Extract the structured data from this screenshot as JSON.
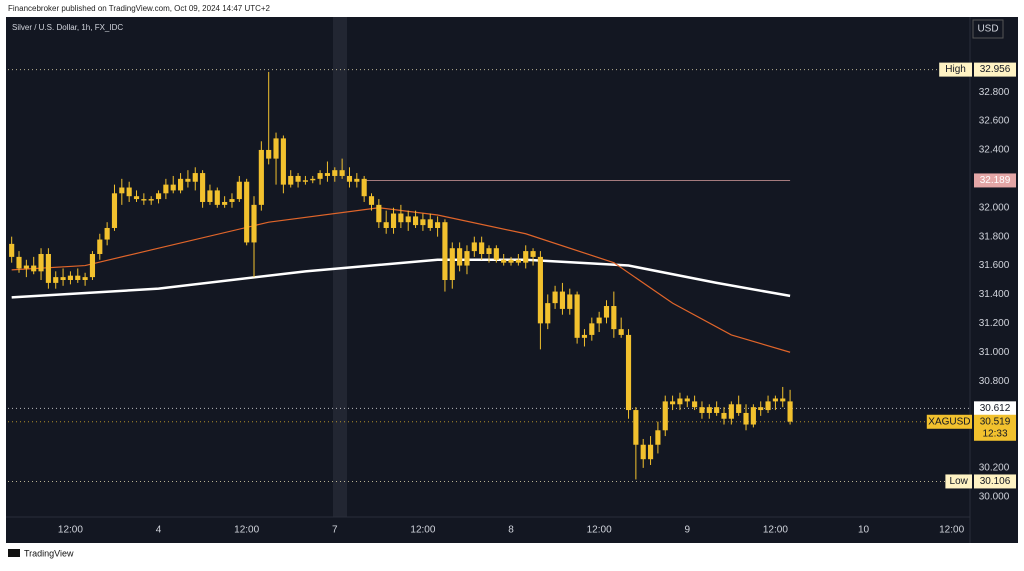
{
  "header": {
    "text": "Financebroker published on TradingView.com, Oct 09, 2024 14:47 UTC+2"
  },
  "footer": {
    "brand": "TradingView"
  },
  "chart_data": {
    "type": "candlestick",
    "title": "Silver / U.S. Dollar, 1h, FX_IDC",
    "currency": "USD",
    "color": "#f2c12e",
    "xlim": [
      -0.5,
      130.5
    ],
    "xticks": [
      {
        "value": 8,
        "label": "12:00"
      },
      {
        "value": 20,
        "label": "4"
      },
      {
        "value": 32,
        "label": "12:00"
      },
      {
        "value": 44,
        "label": "7"
      },
      {
        "value": 56,
        "label": "12:00"
      },
      {
        "value": 68,
        "label": "8"
      },
      {
        "value": 80,
        "label": "12:00"
      },
      {
        "value": 92,
        "label": "9"
      },
      {
        "value": 104,
        "label": "12:00"
      },
      {
        "value": 116,
        "label": "10"
      },
      {
        "value": 128,
        "label": "12:00"
      }
    ],
    "ylim": [
      29.86,
      33.32
    ],
    "yticks": [
      {
        "value": 30,
        "label": "30.000"
      },
      {
        "value": 30.2,
        "label": "30.200"
      },
      {
        "value": 30.8,
        "label": "30.800"
      },
      {
        "value": 31,
        "label": "31.000"
      },
      {
        "value": 31.2,
        "label": "31.200"
      },
      {
        "value": 31.4,
        "label": "31.400"
      },
      {
        "value": 31.6,
        "label": "31.600"
      },
      {
        "value": 31.8,
        "label": "31.800"
      },
      {
        "value": 32,
        "label": "32.000"
      },
      {
        "value": 32.4,
        "label": "32.400"
      },
      {
        "value": 32.6,
        "label": "32.600"
      },
      {
        "value": 32.8,
        "label": "32.800"
      }
    ],
    "ohlc": [
      [
        31.75,
        31.8,
        31.62,
        31.66
      ],
      [
        31.66,
        31.7,
        31.55,
        31.58
      ],
      [
        31.58,
        31.64,
        31.52,
        31.6
      ],
      [
        31.6,
        31.66,
        31.54,
        31.56
      ],
      [
        31.56,
        31.72,
        31.5,
        31.68
      ],
      [
        31.68,
        31.72,
        31.44,
        31.48
      ],
      [
        31.48,
        31.56,
        31.44,
        31.52
      ],
      [
        31.52,
        31.58,
        31.46,
        31.5
      ],
      [
        31.5,
        31.56,
        31.47,
        31.53
      ],
      [
        31.53,
        31.58,
        31.48,
        31.5
      ],
      [
        31.5,
        31.55,
        31.46,
        31.52
      ],
      [
        31.52,
        31.7,
        31.5,
        31.68
      ],
      [
        31.68,
        31.82,
        31.64,
        31.78
      ],
      [
        31.78,
        31.9,
        31.74,
        31.86
      ],
      [
        31.86,
        32.16,
        31.84,
        32.1
      ],
      [
        32.1,
        32.2,
        32.02,
        32.14
      ],
      [
        32.14,
        32.18,
        32.04,
        32.08
      ],
      [
        32.08,
        32.12,
        32.04,
        32.06
      ],
      [
        32.06,
        32.1,
        32.02,
        32.05
      ],
      [
        32.05,
        32.08,
        32.02,
        32.06
      ],
      [
        32.06,
        32.12,
        32.03,
        32.1
      ],
      [
        32.1,
        32.2,
        32.06,
        32.16
      ],
      [
        32.16,
        32.22,
        32.1,
        32.12
      ],
      [
        32.12,
        32.24,
        32.1,
        32.2
      ],
      [
        32.2,
        32.26,
        32.14,
        32.18
      ],
      [
        32.18,
        32.28,
        32.12,
        32.24
      ],
      [
        32.24,
        32.26,
        32.0,
        32.04
      ],
      [
        32.04,
        32.16,
        32.02,
        32.12
      ],
      [
        32.12,
        32.14,
        32.0,
        32.02
      ],
      [
        32.02,
        32.08,
        32.0,
        32.04
      ],
      [
        32.04,
        32.1,
        32.0,
        32.06
      ],
      [
        32.06,
        32.22,
        32.04,
        32.18
      ],
      [
        32.18,
        32.2,
        31.74,
        31.76
      ],
      [
        31.76,
        32.08,
        31.52,
        32.02
      ],
      [
        32.02,
        32.46,
        31.98,
        32.4
      ],
      [
        32.4,
        32.94,
        32.3,
        32.34
      ],
      [
        32.34,
        32.52,
        32.16,
        32.48
      ],
      [
        32.48,
        32.5,
        32.1,
        32.16
      ],
      [
        32.16,
        32.26,
        32.14,
        32.22
      ],
      [
        32.22,
        32.24,
        32.14,
        32.18
      ],
      [
        32.18,
        32.22,
        32.16,
        32.19
      ],
      [
        32.19,
        32.22,
        32.17,
        32.2
      ],
      [
        32.2,
        32.26,
        32.16,
        32.24
      ],
      [
        32.24,
        32.32,
        32.18,
        32.22
      ],
      [
        32.22,
        32.28,
        32.18,
        32.26
      ],
      [
        32.26,
        32.34,
        32.2,
        32.22
      ],
      [
        32.22,
        32.28,
        32.14,
        32.18
      ],
      [
        32.18,
        32.24,
        32.14,
        32.2
      ],
      [
        32.2,
        32.22,
        32.04,
        32.08
      ],
      [
        32.08,
        32.1,
        31.98,
        32.02
      ],
      [
        32.02,
        32.06,
        31.86,
        31.9
      ],
      [
        31.9,
        31.98,
        31.82,
        31.86
      ],
      [
        31.86,
        32.0,
        31.82,
        31.96
      ],
      [
        31.96,
        32.02,
        31.86,
        31.9
      ],
      [
        31.9,
        31.98,
        31.84,
        31.94
      ],
      [
        31.94,
        31.98,
        31.86,
        31.88
      ],
      [
        31.88,
        31.96,
        31.84,
        31.92
      ],
      [
        31.92,
        31.96,
        31.84,
        31.86
      ],
      [
        31.86,
        31.94,
        31.8,
        31.9
      ],
      [
        31.9,
        31.92,
        31.42,
        31.5
      ],
      [
        31.5,
        31.76,
        31.44,
        31.72
      ],
      [
        31.72,
        31.76,
        31.56,
        31.6
      ],
      [
        31.6,
        31.74,
        31.54,
        31.7
      ],
      [
        31.7,
        31.8,
        31.66,
        31.76
      ],
      [
        31.76,
        31.8,
        31.64,
        31.68
      ],
      [
        31.68,
        31.74,
        31.62,
        31.72
      ],
      [
        31.72,
        31.74,
        31.62,
        31.64
      ],
      [
        31.64,
        31.68,
        31.6,
        31.62
      ],
      [
        31.62,
        31.66,
        31.6,
        31.64
      ],
      [
        31.64,
        31.68,
        31.6,
        31.62
      ],
      [
        31.62,
        31.74,
        31.58,
        31.7
      ],
      [
        31.7,
        31.72,
        31.6,
        31.66
      ],
      [
        31.66,
        31.7,
        31.02,
        31.2
      ],
      [
        31.2,
        31.4,
        31.16,
        31.34
      ],
      [
        31.34,
        31.46,
        31.3,
        31.42
      ],
      [
        31.42,
        31.48,
        31.26,
        31.3
      ],
      [
        31.3,
        31.44,
        31.26,
        31.4
      ],
      [
        31.4,
        31.42,
        31.06,
        31.1
      ],
      [
        31.1,
        31.16,
        31.04,
        31.12
      ],
      [
        31.12,
        31.24,
        31.08,
        31.2
      ],
      [
        31.2,
        31.28,
        31.14,
        31.24
      ],
      [
        31.24,
        31.36,
        31.2,
        31.32
      ],
      [
        31.32,
        31.42,
        31.1,
        31.16
      ],
      [
        31.16,
        31.24,
        31.1,
        31.12
      ],
      [
        31.12,
        31.16,
        30.54,
        30.6
      ],
      [
        30.6,
        30.62,
        30.12,
        30.36
      ],
      [
        30.36,
        30.4,
        30.2,
        30.26
      ],
      [
        30.26,
        30.42,
        30.22,
        30.36
      ],
      [
        30.36,
        30.52,
        30.3,
        30.46
      ],
      [
        30.46,
        30.7,
        30.42,
        30.66
      ],
      [
        30.66,
        30.7,
        30.6,
        30.64
      ],
      [
        30.64,
        30.72,
        30.6,
        30.68
      ],
      [
        30.68,
        30.7,
        30.62,
        30.66
      ],
      [
        30.66,
        30.7,
        30.6,
        30.62
      ],
      [
        30.62,
        30.66,
        30.54,
        30.58
      ],
      [
        30.58,
        30.64,
        30.54,
        30.62
      ],
      [
        30.62,
        30.66,
        30.56,
        30.58
      ],
      [
        30.58,
        30.62,
        30.5,
        30.54
      ],
      [
        30.54,
        30.66,
        30.5,
        30.64
      ],
      [
        30.64,
        30.7,
        30.56,
        30.58
      ],
      [
        30.58,
        30.64,
        30.46,
        30.5
      ],
      [
        30.5,
        30.64,
        30.48,
        30.62
      ],
      [
        30.62,
        30.66,
        30.56,
        30.6
      ],
      [
        30.6,
        30.7,
        30.58,
        30.66
      ],
      [
        30.66,
        30.7,
        30.6,
        30.68
      ],
      [
        30.68,
        30.76,
        30.62,
        30.66
      ],
      [
        30.66,
        30.74,
        30.5,
        30.52
      ]
    ],
    "lines": [
      {
        "color": "#ffffff",
        "x": [
          0,
          20,
          40,
          58,
          70,
          84,
          96,
          106
        ],
        "values": [
          31.38,
          31.44,
          31.56,
          31.64,
          31.64,
          31.6,
          31.48,
          31.39
        ]
      },
      {
        "color": "#e0652a",
        "x": [
          0,
          10,
          20,
          35,
          50,
          58,
          70,
          82,
          90,
          98,
          106
        ],
        "values": [
          31.57,
          31.6,
          31.72,
          31.9,
          32.0,
          31.95,
          31.82,
          31.62,
          31.34,
          31.12,
          31.0
        ]
      }
    ],
    "price_lines": [
      {
        "value": 32.956,
        "tag": "High",
        "color": "#fff3c4"
      },
      {
        "value": 32.189,
        "color": "#e4a6a6",
        "from": 48
      },
      {
        "value": 30.612,
        "color": "#ffffff"
      },
      {
        "value": 30.519,
        "tag": "XAGUSD",
        "countdown": "12:33",
        "color": "#f2c12e"
      },
      {
        "value": 30.106,
        "tag": "Low",
        "color": "#fff3c4"
      }
    ]
  }
}
